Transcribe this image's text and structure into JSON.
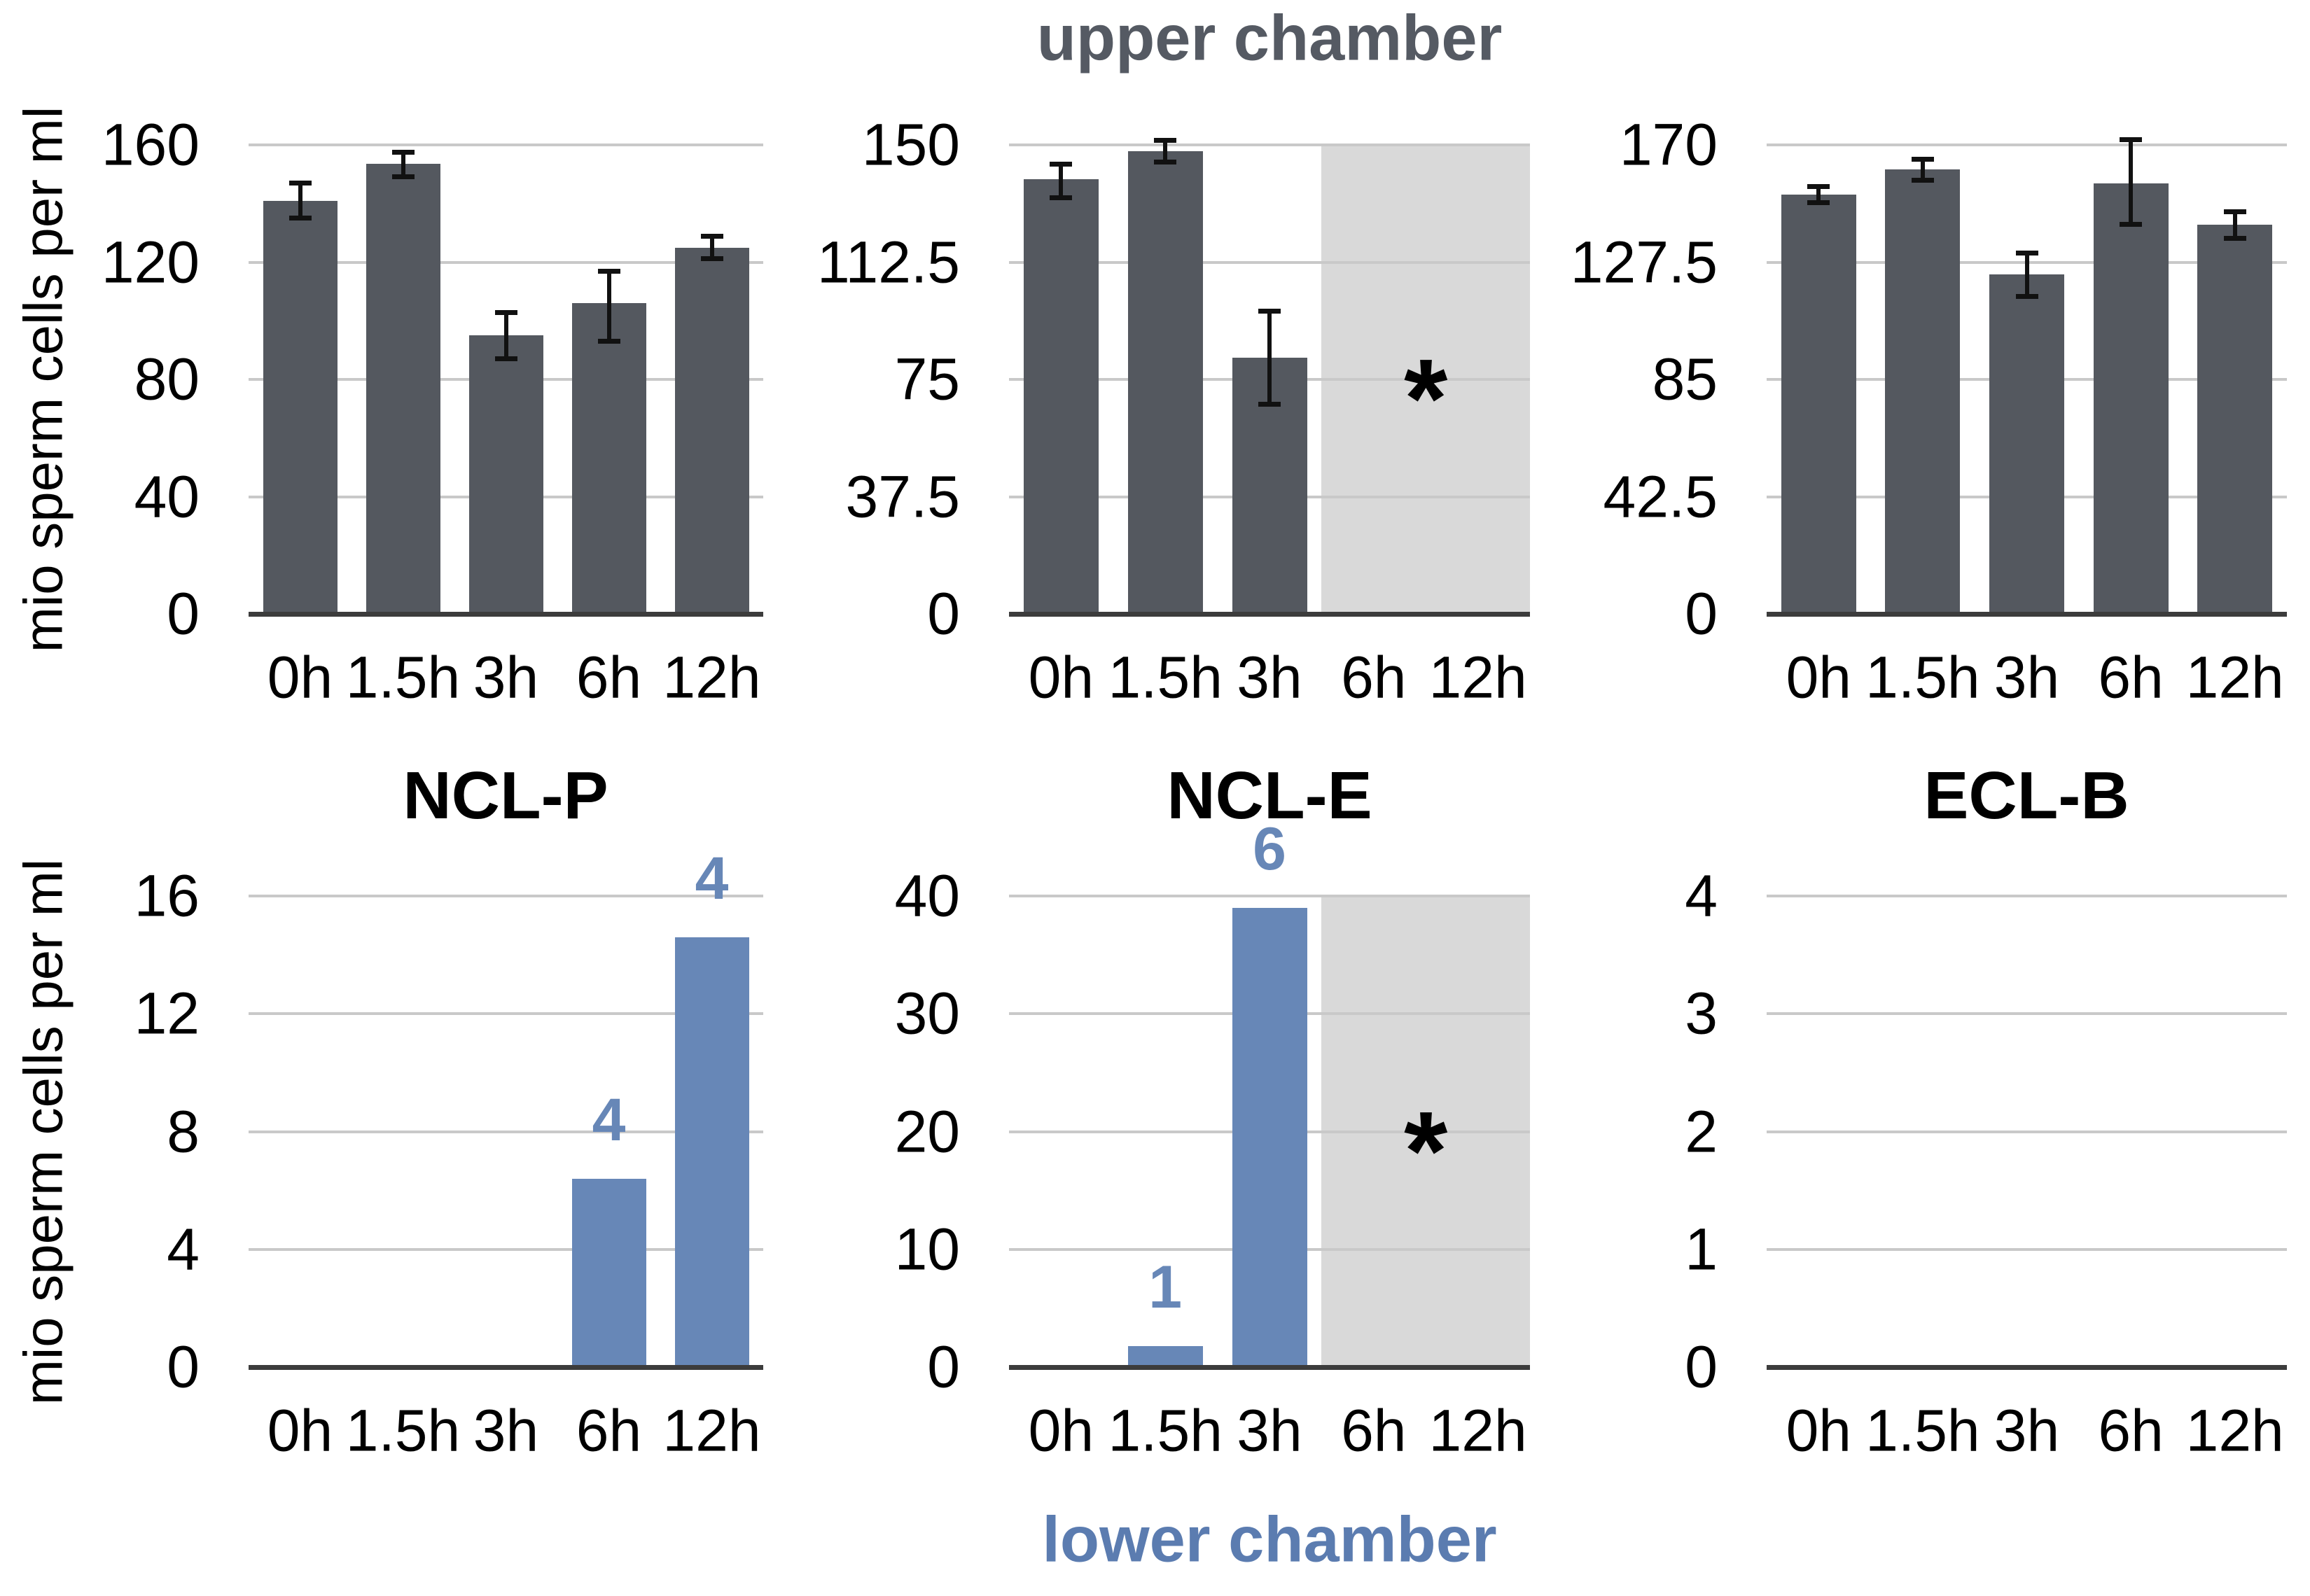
{
  "header": {
    "title": "upper chamber"
  },
  "footer": {
    "title": "lower chamber"
  },
  "y_axis_label": "mio sperm cells per ml",
  "condition_titles": [
    "NCL-P",
    "NCL-E",
    "ECL-B"
  ],
  "colors": {
    "bar_dark": "#54585f",
    "bar_blue": "#6787b7",
    "shade": "#d9d9d9",
    "grid": "#c9c9c9",
    "axis": "#3c3c3c",
    "error_bar": "#111111",
    "upper_title": "#555a63",
    "lower_title": "#5b7cb0",
    "asterisk": "#000000",
    "text": "#000000"
  },
  "chart_data": [
    {
      "id": "upper-ncl-p",
      "type": "bar",
      "chamber": "upper",
      "cell_line": "NCL-P",
      "row": "upper",
      "col": 0,
      "bar": "dark",
      "categories": [
        "0h",
        "1.5h",
        "3h",
        "6h",
        "12h"
      ],
      "values": [
        141,
        153.5,
        95,
        106,
        125
      ],
      "err_up": [
        6,
        4,
        8,
        11,
        4
      ],
      "err_down": [
        6,
        4.5,
        8,
        13,
        4
      ],
      "ylim": [
        0,
        160
      ],
      "ytick_values": [
        0,
        40,
        80,
        120,
        160
      ],
      "ytick_labels": [
        "0",
        "40",
        "80",
        "120",
        "160"
      ],
      "shaded_from_index": null,
      "asterisk": false,
      "ylabel": "mio sperm cells per ml",
      "grid": true
    },
    {
      "id": "upper-ncl-e",
      "type": "bar",
      "chamber": "upper",
      "cell_line": "NCL-E",
      "row": "upper",
      "col": 1,
      "bar": "dark",
      "categories": [
        "0h",
        "1.5h",
        "3h",
        "6h",
        "12h"
      ],
      "values": [
        139,
        148,
        82,
        null,
        null
      ],
      "err_up": [
        5,
        3.5,
        15,
        null,
        null
      ],
      "err_down": [
        6,
        3.5,
        15,
        null,
        null
      ],
      "ylim": [
        0,
        150
      ],
      "ytick_values": [
        0,
        37.5,
        75,
        112.5,
        150
      ],
      "ytick_labels": [
        "0",
        "37.5",
        "75",
        "112.5",
        "150"
      ],
      "shaded_from_index": 3,
      "asterisk": true,
      "asterisk_symbol": "*",
      "ylabel": "mio sperm cells per ml",
      "grid": true
    },
    {
      "id": "upper-ecl-b",
      "type": "bar",
      "chamber": "upper",
      "cell_line": "ECL-B",
      "row": "upper",
      "col": 2,
      "bar": "dark",
      "categories": [
        "0h",
        "1.5h",
        "3h",
        "6h",
        "12h"
      ],
      "values": [
        152,
        161,
        123,
        156,
        141
      ],
      "err_up": [
        3,
        4,
        8,
        16,
        5
      ],
      "err_down": [
        3,
        4,
        8,
        15,
        5
      ],
      "ylim": [
        0,
        170
      ],
      "ytick_values": [
        0,
        42.5,
        85,
        127.5,
        170
      ],
      "ytick_labels": [
        "0",
        "42.5",
        "85",
        "127.5",
        "170"
      ],
      "shaded_from_index": null,
      "asterisk": false,
      "ylabel": "mio sperm cells per ml",
      "grid": true
    },
    {
      "id": "lower-ncl-p",
      "type": "bar",
      "chamber": "lower",
      "cell_line": "NCL-P",
      "row": "lower",
      "col": 0,
      "bar": "blue",
      "categories": [
        "0h",
        "1.5h",
        "3h",
        "6h",
        "12h"
      ],
      "values": [
        0,
        0,
        0,
        6.4,
        14.6
      ],
      "bar_labels": [
        null,
        null,
        null,
        "4",
        "4"
      ],
      "ylim": [
        0,
        16
      ],
      "ytick_values": [
        0,
        4,
        8,
        12,
        16
      ],
      "ytick_labels": [
        "0",
        "4",
        "8",
        "12",
        "16"
      ],
      "shaded_from_index": null,
      "asterisk": false,
      "ylabel": "mio sperm cells per ml",
      "grid": true
    },
    {
      "id": "lower-ncl-e",
      "type": "bar",
      "chamber": "lower",
      "cell_line": "NCL-E",
      "row": "lower",
      "col": 1,
      "bar": "blue",
      "categories": [
        "0h",
        "1.5h",
        "3h",
        "6h",
        "12h"
      ],
      "values": [
        0,
        1.8,
        39,
        null,
        null
      ],
      "bar_labels": [
        null,
        "1",
        "6",
        null,
        null
      ],
      "ylim": [
        0,
        40
      ],
      "ytick_values": [
        0,
        10,
        20,
        30,
        40
      ],
      "ytick_labels": [
        "0",
        "10",
        "20",
        "30",
        "40"
      ],
      "shaded_from_index": 3,
      "asterisk": true,
      "asterisk_symbol": "*",
      "ylabel": "mio sperm cells per ml",
      "grid": true
    },
    {
      "id": "lower-ecl-b",
      "type": "bar",
      "chamber": "lower",
      "cell_line": "ECL-B",
      "row": "lower",
      "col": 2,
      "bar": "blue",
      "categories": [
        "0h",
        "1.5h",
        "3h",
        "6h",
        "12h"
      ],
      "values": [
        0,
        0,
        0,
        0,
        0
      ],
      "ylim": [
        0,
        4
      ],
      "ytick_values": [
        0,
        1,
        2,
        3,
        4
      ],
      "ytick_labels": [
        "0",
        "1",
        "2",
        "3",
        "4"
      ],
      "shaded_from_index": null,
      "asterisk": false,
      "ylabel": "mio sperm cells per ml",
      "grid": true
    }
  ]
}
